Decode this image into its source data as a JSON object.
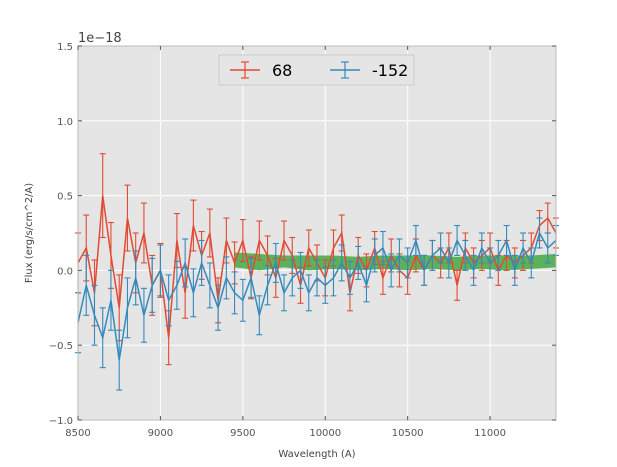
{
  "chart_data": {
    "type": "line",
    "xlabel": "Wavelength (A)",
    "ylabel": "Flux (erg/s/cm^2/A)",
    "offset_text": "1e−18",
    "xlim": [
      8500,
      11400
    ],
    "ylim": [
      -1.0,
      1.5
    ],
    "xticks": [
      8500,
      9000,
      9500,
      10000,
      10500,
      11000
    ],
    "xtick_labels": [
      "8500",
      "9000",
      "9500",
      "10000",
      "10500",
      "11000"
    ],
    "yticks": [
      -1.0,
      -0.5,
      0.0,
      0.5,
      1.0,
      1.5
    ],
    "ytick_labels": [
      "−1.0",
      "−0.5",
      "0.0",
      "0.5",
      "1.0",
      "1.5"
    ],
    "grid": true,
    "legend_position": "top-center",
    "background_color": "#e5e5e5",
    "series": [
      {
        "name": "68",
        "color": "#e24a33",
        "x": [
          8500,
          8550,
          8600,
          8650,
          8700,
          8750,
          8800,
          8850,
          8900,
          8950,
          9000,
          9050,
          9100,
          9150,
          9200,
          9250,
          9300,
          9350,
          9400,
          9450,
          9500,
          9550,
          9600,
          9650,
          9700,
          9750,
          9800,
          9850,
          9900,
          9950,
          10000,
          10050,
          10100,
          10150,
          10200,
          10250,
          10300,
          10350,
          10400,
          10450,
          10500,
          10550,
          10600,
          10650,
          10700,
          10750,
          10800,
          10850,
          10900,
          10950,
          11000,
          11050,
          11100,
          11150,
          11200,
          11250,
          11300,
          11350,
          11400
        ],
        "y": [
          0.05,
          0.15,
          -0.15,
          0.5,
          0.1,
          -0.25,
          0.35,
          0.05,
          0.25,
          -0.1,
          0.0,
          -0.45,
          0.2,
          -0.15,
          0.3,
          0.1,
          0.25,
          -0.2,
          0.2,
          0.05,
          0.2,
          -0.05,
          0.2,
          0.1,
          -0.05,
          0.2,
          0.1,
          -0.1,
          0.15,
          0.05,
          -0.05,
          0.15,
          0.25,
          -0.15,
          0.1,
          0.0,
          0.15,
          -0.05,
          0.1,
          0.0,
          -0.05,
          0.1,
          0.0,
          0.1,
          0.05,
          0.15,
          -0.1,
          0.15,
          0.05,
          0.1,
          0.15,
          0.0,
          0.1,
          0.05,
          0.1,
          0.15,
          0.3,
          0.35,
          0.25
        ],
        "yerr": [
          0.2,
          0.22,
          0.22,
          0.28,
          0.22,
          0.22,
          0.22,
          0.2,
          0.2,
          0.2,
          0.18,
          0.18,
          0.18,
          0.17,
          0.17,
          0.16,
          0.16,
          0.15,
          0.15,
          0.14,
          0.14,
          0.14,
          0.13,
          0.13,
          0.13,
          0.13,
          0.12,
          0.12,
          0.12,
          0.12,
          0.12,
          0.12,
          0.12,
          0.12,
          0.12,
          0.11,
          0.11,
          0.11,
          0.11,
          0.11,
          0.11,
          0.11,
          0.1,
          0.1,
          0.1,
          0.1,
          0.1,
          0.1,
          0.1,
          0.1,
          0.1,
          0.1,
          0.1,
          0.1,
          0.1,
          0.1,
          0.1,
          0.1,
          0.1
        ]
      },
      {
        "name": "-152",
        "color": "#348abd",
        "x": [
          8500,
          8550,
          8600,
          8650,
          8700,
          8750,
          8800,
          8850,
          8900,
          8950,
          9000,
          9050,
          9100,
          9150,
          9200,
          9250,
          9300,
          9350,
          9400,
          9450,
          9500,
          9550,
          9600,
          9650,
          9700,
          9750,
          9800,
          9850,
          9900,
          9950,
          10000,
          10050,
          10100,
          10150,
          10200,
          10250,
          10300,
          10350,
          10400,
          10450,
          10500,
          10550,
          10600,
          10650,
          10700,
          10750,
          10800,
          10850,
          10900,
          10950,
          11000,
          11050,
          11100,
          11150,
          11200,
          11250,
          11300,
          11350,
          11400
        ],
        "y": [
          -0.35,
          -0.1,
          -0.3,
          -0.45,
          -0.2,
          -0.6,
          -0.25,
          -0.05,
          -0.3,
          -0.1,
          0.0,
          -0.2,
          -0.1,
          0.05,
          -0.15,
          0.05,
          -0.1,
          -0.25,
          -0.05,
          -0.15,
          -0.2,
          -0.05,
          -0.3,
          -0.1,
          0.05,
          -0.15,
          -0.05,
          0.0,
          -0.15,
          -0.05,
          -0.1,
          -0.05,
          0.05,
          -0.05,
          0.05,
          -0.1,
          0.1,
          0.15,
          0.0,
          0.1,
          0.05,
          0.2,
          0.0,
          0.1,
          0.15,
          0.05,
          0.2,
          0.1,
          0.0,
          0.15,
          0.05,
          0.1,
          0.2,
          0.0,
          0.15,
          0.05,
          0.25,
          0.15,
          0.2
        ],
        "yerr": [
          0.2,
          0.2,
          0.2,
          0.2,
          0.2,
          0.2,
          0.2,
          0.18,
          0.18,
          0.18,
          0.17,
          0.17,
          0.16,
          0.16,
          0.16,
          0.15,
          0.15,
          0.15,
          0.14,
          0.14,
          0.14,
          0.13,
          0.13,
          0.13,
          0.13,
          0.12,
          0.12,
          0.12,
          0.12,
          0.12,
          0.12,
          0.12,
          0.12,
          0.11,
          0.11,
          0.11,
          0.11,
          0.11,
          0.11,
          0.11,
          0.1,
          0.1,
          0.1,
          0.1,
          0.1,
          0.1,
          0.1,
          0.1,
          0.1,
          0.1,
          0.1,
          0.1,
          0.1,
          0.1,
          0.1,
          0.1,
          0.1,
          0.1,
          0.1
        ]
      }
    ],
    "band": {
      "color": "#2ca02c",
      "x": [
        9450,
        9600,
        9750,
        9900,
        10050,
        10200,
        10350,
        10500,
        10650,
        10800,
        10950,
        11100,
        11250,
        11400
      ],
      "lower": [
        0.02,
        0.0,
        0.02,
        0.0,
        0.01,
        0.0,
        0.01,
        0.0,
        0.01,
        0.0,
        0.01,
        0.0,
        0.01,
        0.02
      ],
      "upper": [
        0.12,
        0.11,
        0.1,
        0.1,
        0.1,
        0.09,
        0.1,
        0.1,
        0.1,
        0.09,
        0.1,
        0.1,
        0.1,
        0.11
      ]
    }
  }
}
